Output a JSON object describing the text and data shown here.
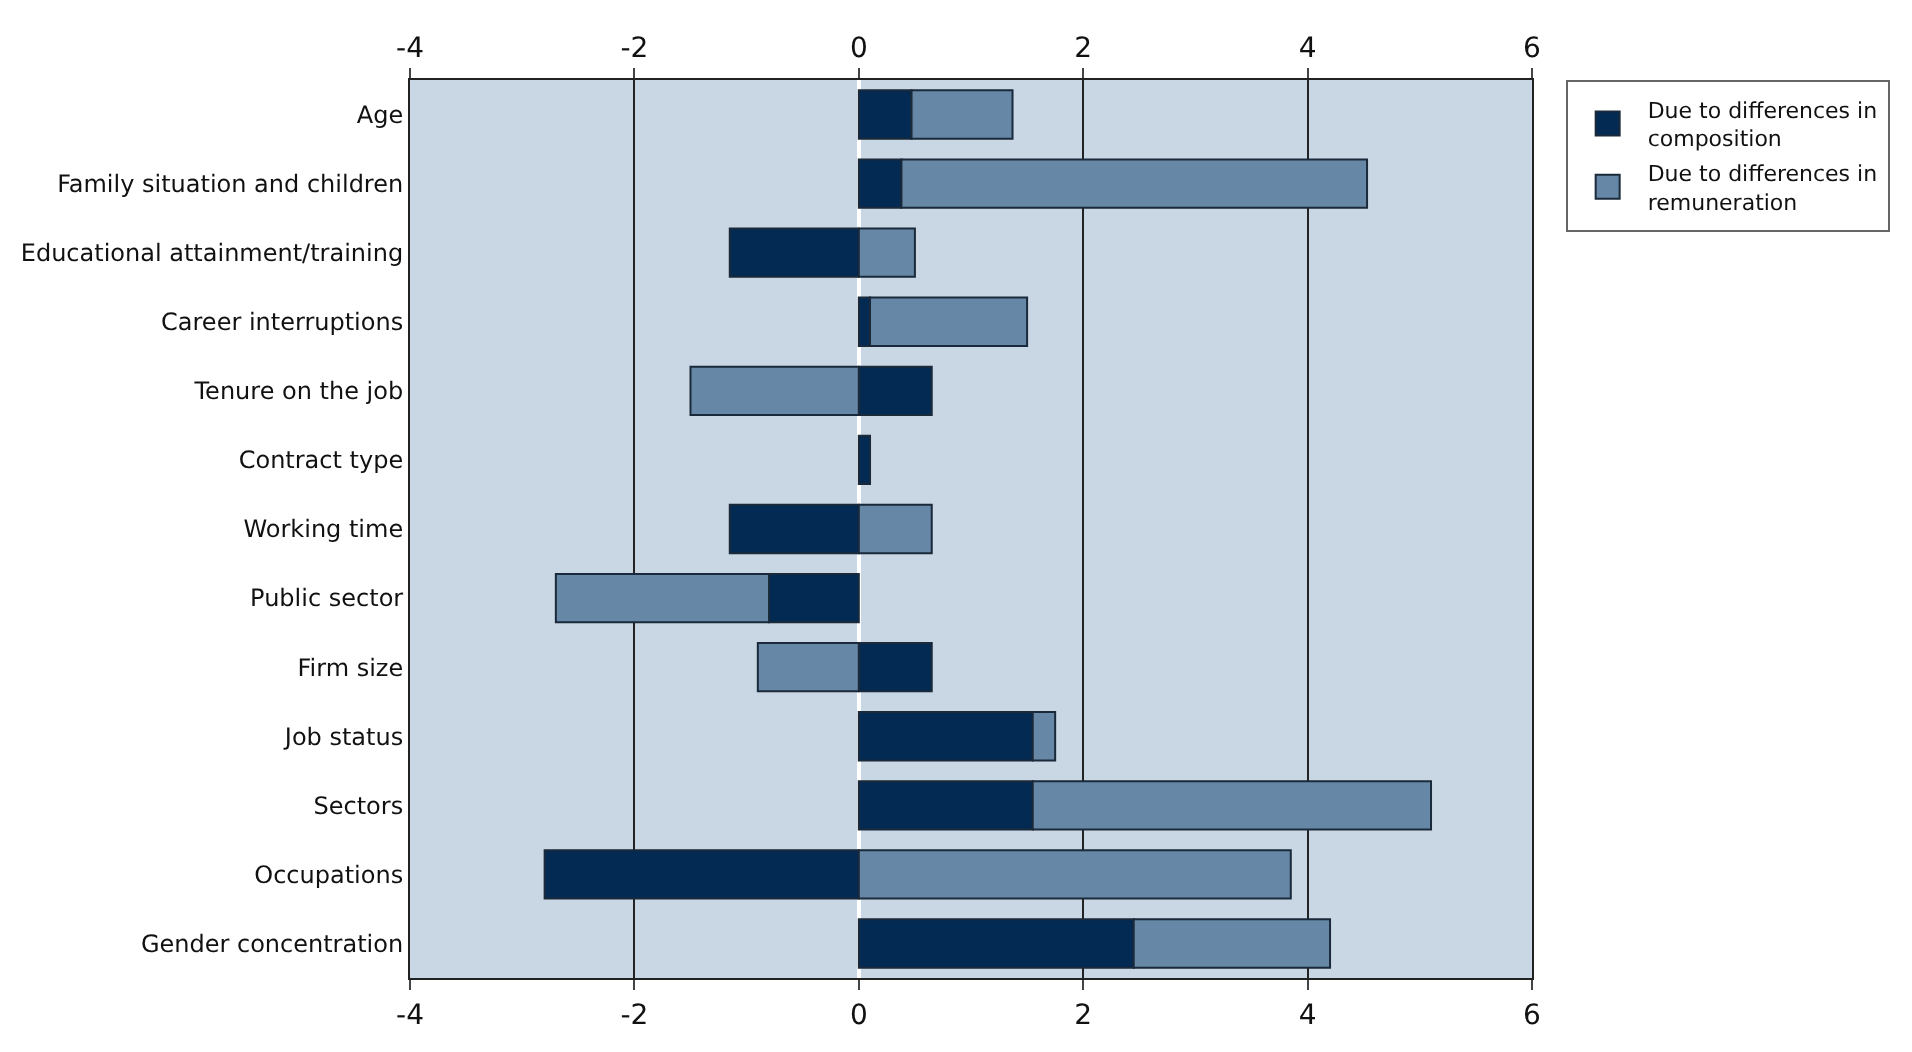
{
  "chart_data": {
    "type": "bar",
    "orientation": "horizontal",
    "stacked": true,
    "categories": [
      "Age",
      "Family situation and children",
      "Educational attainment/training",
      "Career interruptions",
      "Tenure on the job",
      "Contract type",
      "Working time",
      "Public sector",
      "Firm size",
      "Job status",
      "Sectors",
      "Occupations",
      "Gender concentration"
    ],
    "series": [
      {
        "name": "Due to differences in composition",
        "color": "#032a52",
        "values": [
          0.47,
          0.38,
          -1.15,
          0.1,
          0.65,
          0.1,
          -1.15,
          -0.8,
          0.65,
          1.55,
          1.55,
          -2.8,
          2.45
        ]
      },
      {
        "name": "Due to differences in remuneration",
        "color": "#6687a6",
        "values": [
          0.9,
          4.15,
          0.5,
          1.4,
          -1.5,
          null,
          0.65,
          -1.9,
          -0.9,
          0.2,
          3.55,
          3.85,
          1.75
        ]
      }
    ],
    "xlim": [
      -4,
      6
    ],
    "xticks": [
      -4,
      -2,
      0,
      2,
      4,
      6
    ],
    "x2lim": [
      -4,
      6
    ],
    "x2ticks": [
      -4,
      -2,
      0,
      2,
      4,
      6
    ],
    "grid": "x",
    "legend": "top right"
  }
}
